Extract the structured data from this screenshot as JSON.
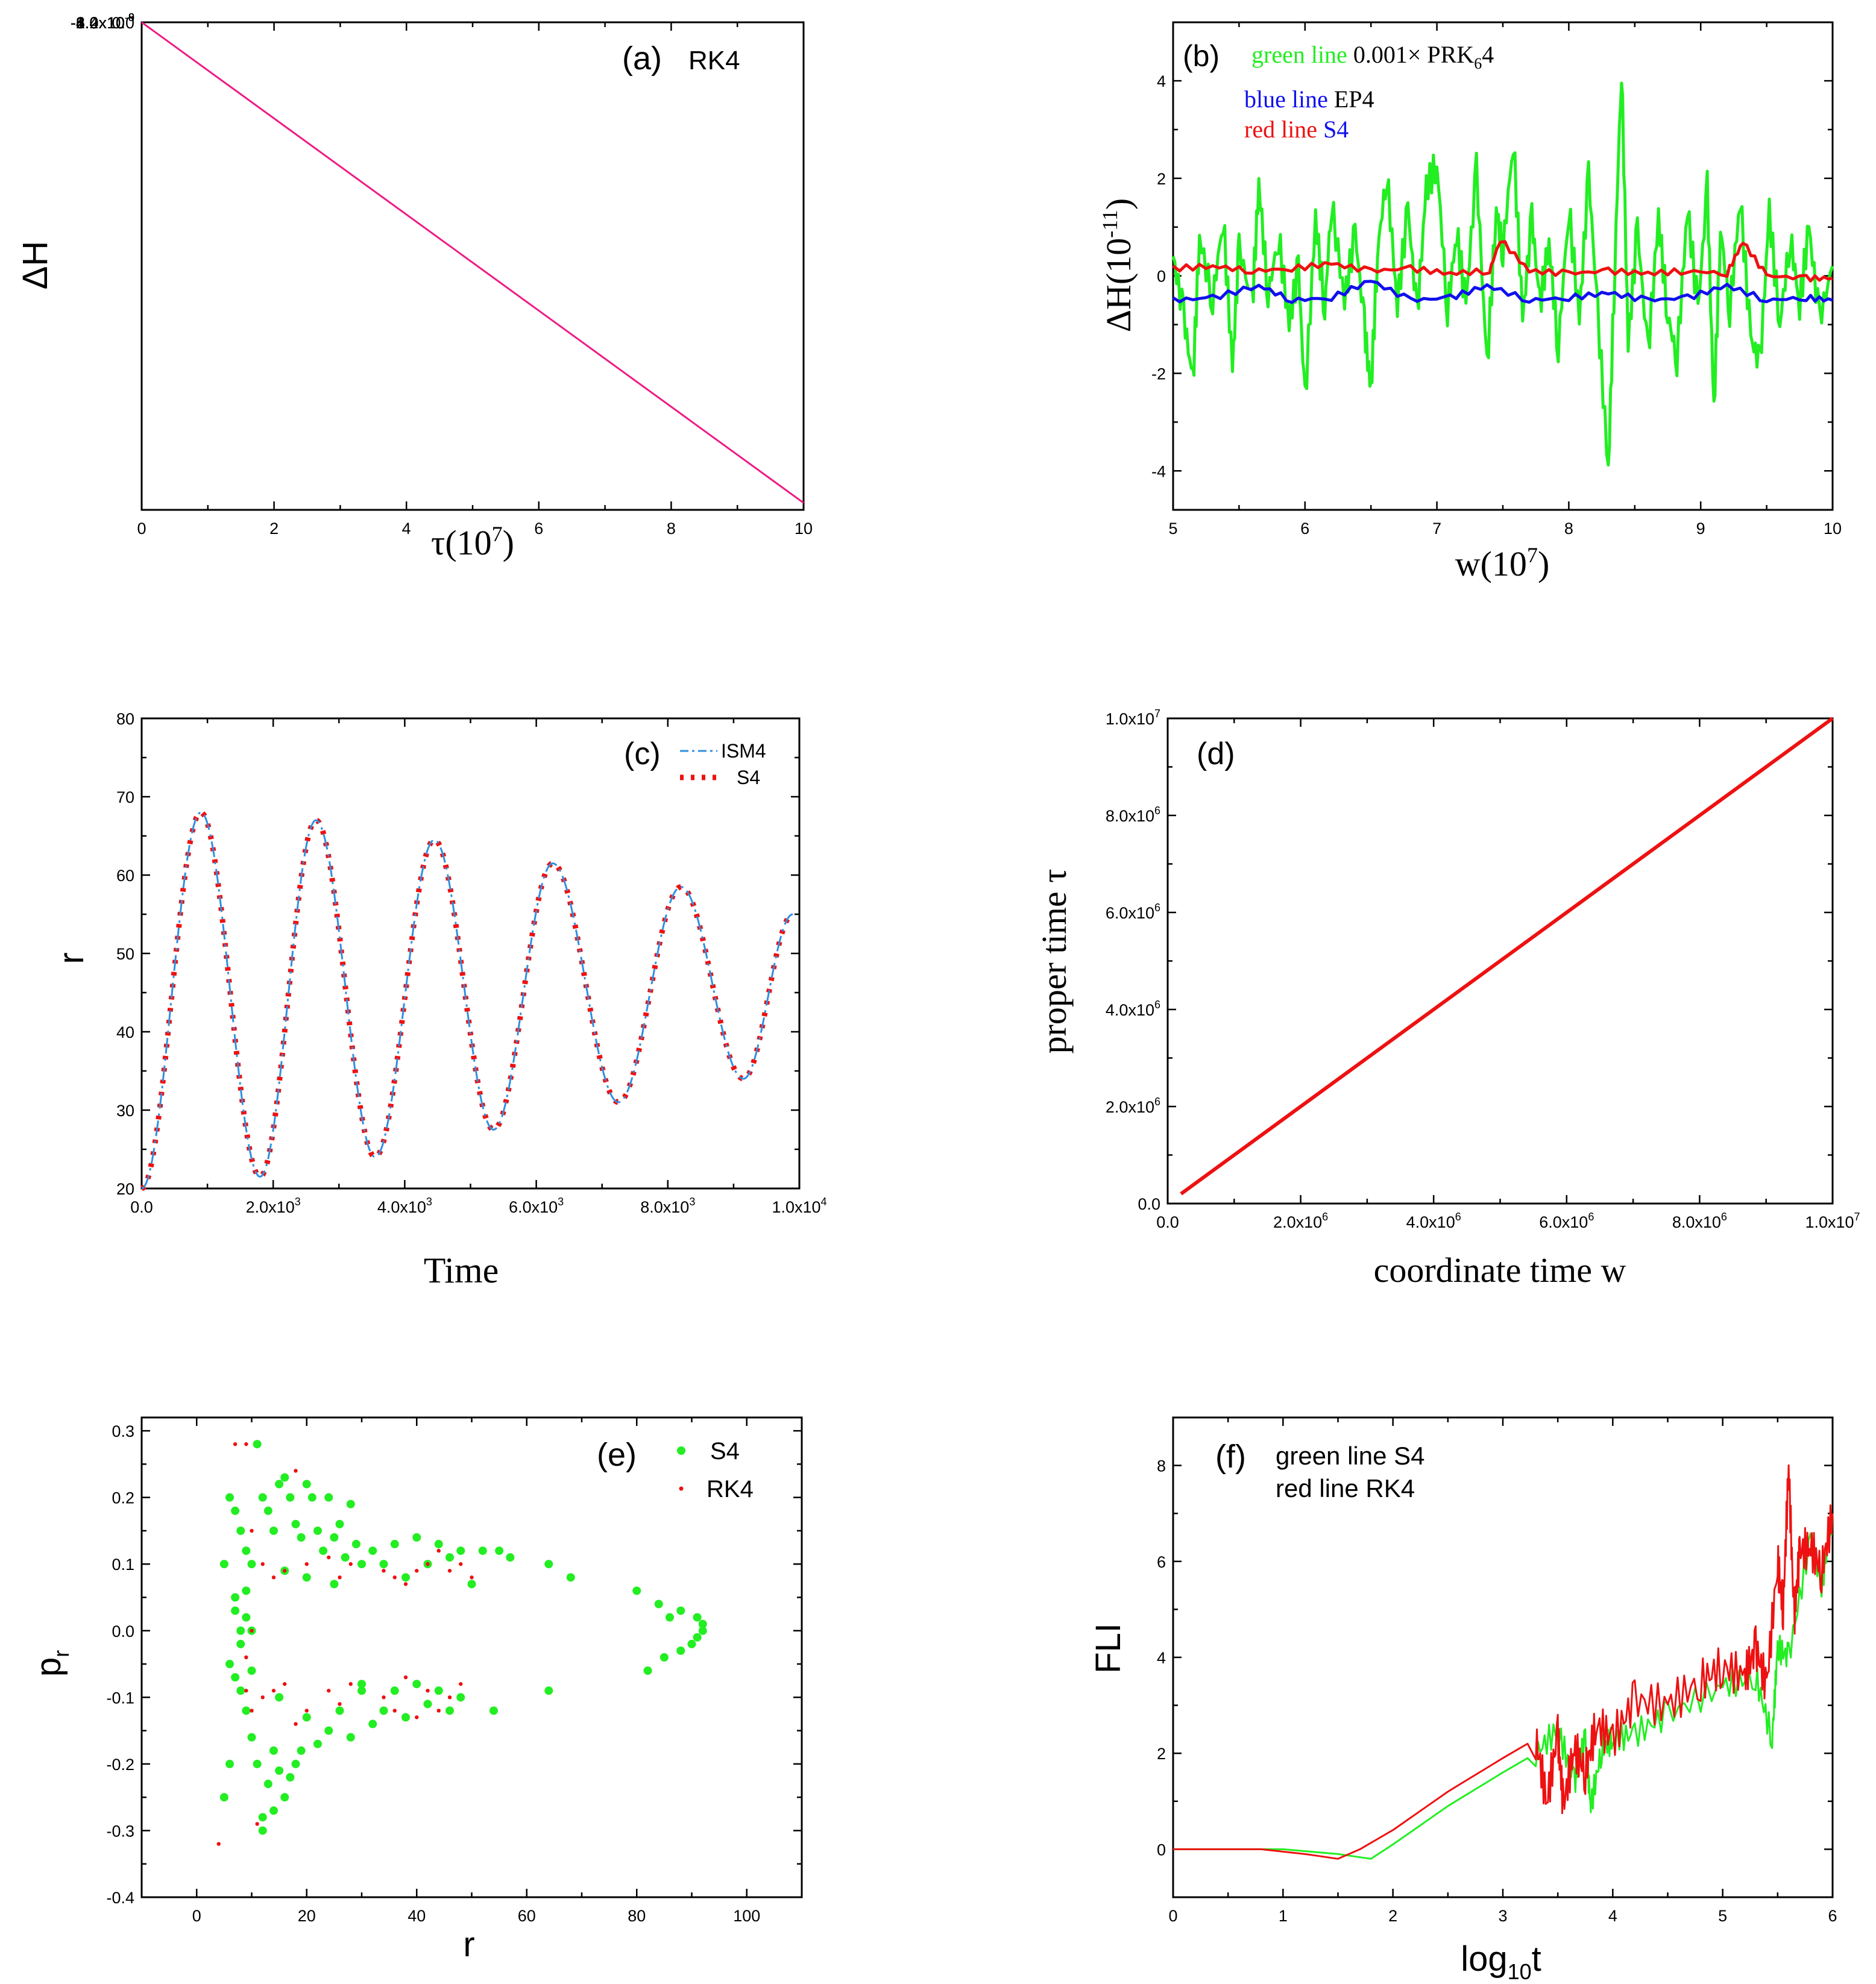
{
  "colors": {
    "pink": "#ee1b85",
    "green": "#22ee22",
    "blue": "#1010ee",
    "red": "#ee1111",
    "dash_blue": "#2f8fe0",
    "black": "#000000"
  },
  "chart_data": [
    {
      "id": "a",
      "type": "line",
      "panel_label": "(a)",
      "legend_label": "RK4",
      "xlabel": "τ(10",
      "xlabel_sup": "7",
      "xlabel_end": ")",
      "ylabel": "ΔH",
      "xlim": [
        0,
        10
      ],
      "ylim": [
        -1.4e-08,
        0.0
      ],
      "xtick_labels": [
        "0",
        "2",
        "4",
        "6",
        "8",
        "10"
      ],
      "ytick_labels": [
        "0.0",
        "-2.0x10",
        "-4.0x10",
        "-6.0x10",
        "-8.0x10",
        "-1.0x10",
        "-1.2x10",
        "-1.4x10"
      ],
      "ytick_exps": [
        "",
        "-9",
        "-9",
        "-9",
        "-9",
        "-8",
        "-8",
        "-8"
      ],
      "series": [
        {
          "name": "RK4",
          "x": [
            0,
            10
          ],
          "y": [
            0.0,
            -1.38e-08
          ]
        }
      ]
    },
    {
      "id": "b",
      "type": "line",
      "panel_label": "(b)",
      "xlabel": "w(10",
      "xlabel_sup": "7",
      "xlabel_end": ")",
      "ylabel": "ΔH(10",
      "ylabel_sup": "-11",
      "ylabel_end": ")",
      "xlim": [
        5,
        10
      ],
      "ylim": [
        -4.8,
        5.2
      ],
      "xtick_labels": [
        "5",
        "6",
        "7",
        "8",
        "9",
        "10"
      ],
      "ytick_labels": [
        "4",
        "2",
        "0",
        "-2",
        "-4"
      ],
      "legend": [
        {
          "prefix": "green line",
          "rest": "0.001× PRK",
          "sub": "6",
          "tail": "4"
        },
        {
          "prefix": "blue line",
          "rest": "EP4"
        },
        {
          "prefix": "red line",
          "rest": "S4"
        }
      ],
      "series": [
        {
          "name": "green line 0.001× PRK64",
          "x": [
            5.0,
            5.08,
            5.15,
            5.2,
            5.3,
            5.38,
            5.45,
            5.5,
            5.6,
            5.65,
            5.72,
            5.8,
            5.88,
            5.95,
            6.0,
            6.08,
            6.15,
            6.2,
            6.3,
            6.38,
            6.45,
            6.5,
            6.55,
            6.62,
            6.7,
            6.78,
            6.85,
            6.92,
            7.0,
            7.08,
            7.15,
            7.22,
            7.3,
            7.38,
            7.45,
            7.5,
            7.58,
            7.65,
            7.72,
            7.78,
            7.85,
            7.92,
            8.0,
            8.08,
            8.15,
            8.22,
            8.3,
            8.35,
            8.4,
            8.45,
            8.52,
            8.6,
            8.68,
            8.75,
            8.82,
            8.9,
            8.98,
            9.05,
            9.1,
            9.15,
            9.22,
            9.3,
            9.38,
            9.45,
            9.52,
            9.6,
            9.68,
            9.75,
            9.82,
            9.9,
            10.0
          ],
          "y": [
            0.4,
            -0.8,
            -2.2,
            0.8,
            -0.5,
            1.2,
            -1.9,
            0.6,
            -0.6,
            1.9,
            -0.4,
            0.8,
            -1.0,
            0.2,
            -2.6,
            1.2,
            -0.7,
            1.5,
            -0.5,
            0.9,
            -1.0,
            -2.4,
            0.5,
            2.1,
            -0.6,
            1.4,
            -0.8,
            1.8,
            2.3,
            -0.7,
            0.9,
            -0.6,
            2.2,
            -1.9,
            1.4,
            0.5,
            2.8,
            -0.9,
            1.2,
            -0.6,
            0.7,
            -1.5,
            1.4,
            -0.9,
            2.1,
            -0.8,
            -4.0,
            0.3,
            4.3,
            -1.4,
            1.0,
            -1.6,
            1.2,
            -0.8,
            -1.7,
            1.4,
            -0.7,
            1.8,
            -2.8,
            1.0,
            -0.7,
            1.6,
            -1.3,
            -1.8,
            1.3,
            -1.0,
            0.8,
            -0.6,
            1.0,
            -0.9,
            0.2
          ]
        },
        {
          "name": "blue line EP4",
          "x": [
            5.0,
            5.3,
            5.65,
            5.9,
            6.2,
            6.5,
            6.8,
            7.1,
            7.38,
            7.7,
            8.0,
            8.3,
            8.6,
            8.9,
            9.2,
            9.5,
            9.8,
            10.0
          ],
          "y": [
            -0.5,
            -0.45,
            -0.2,
            -0.5,
            -0.45,
            -0.1,
            -0.5,
            -0.45,
            -0.2,
            -0.5,
            -0.45,
            -0.35,
            -0.5,
            -0.45,
            -0.2,
            -0.5,
            -0.45,
            -0.5
          ]
        },
        {
          "name": "red line S4",
          "x": [
            5.0,
            5.3,
            5.6,
            5.9,
            6.2,
            6.5,
            6.8,
            7.1,
            7.4,
            7.48,
            7.7,
            8.0,
            8.3,
            8.6,
            8.9,
            9.2,
            9.32,
            9.5,
            9.8,
            10.0
          ],
          "y": [
            0.15,
            0.2,
            0.1,
            0.15,
            0.25,
            0.1,
            0.15,
            0.05,
            0.1,
            0.75,
            0.1,
            0.05,
            0.1,
            0.05,
            0.1,
            0.05,
            0.7,
            0.0,
            -0.05,
            -0.05
          ]
        }
      ]
    },
    {
      "id": "c",
      "type": "line",
      "panel_label": "(c)",
      "xlabel": "Time",
      "ylabel": "r",
      "xlim": [
        0,
        10000
      ],
      "ylim": [
        20,
        80
      ],
      "xtick_labels": [
        "0.0",
        "2.0x10",
        "4.0x10",
        "6.0x10",
        "8.0x10",
        "1.0x10"
      ],
      "xtick_exps": [
        "",
        "3",
        "3",
        "3",
        "3",
        "4"
      ],
      "ytick_labels": [
        "20",
        "30",
        "40",
        "50",
        "60",
        "70",
        "80"
      ],
      "legend": [
        "ISM4",
        "S4"
      ],
      "series": [
        {
          "name": "ISM4",
          "x": [
            0,
            900,
            1800,
            2650,
            3550,
            4450,
            5350,
            6250,
            7250,
            8200,
            9150,
            9900
          ],
          "y": [
            20,
            68,
            21.5,
            67,
            24,
            64.5,
            27.5,
            61.5,
            31,
            58.5,
            34,
            55
          ]
        },
        {
          "name": "S4",
          "x": [
            0,
            900,
            1800,
            2650,
            3550,
            4450,
            5350,
            6250,
            7250,
            8200,
            9150,
            9900
          ],
          "y": [
            20,
            68,
            21.5,
            67,
            24,
            64.5,
            27.5,
            61.5,
            31,
            58.5,
            34,
            55
          ]
        }
      ]
    },
    {
      "id": "d",
      "type": "line",
      "panel_label": "(d)",
      "xlabel": "coordinate time w",
      "ylabel": "proper time τ",
      "xlim": [
        0,
        10000000
      ],
      "ylim": [
        0,
        10000000
      ],
      "xtick_labels": [
        "0.0",
        "2.0x10",
        "4.0x10",
        "6.0x10",
        "8.0x10",
        "1.0x10"
      ],
      "xtick_exps": [
        "",
        "6",
        "6",
        "6",
        "6",
        "7"
      ],
      "ytick_labels": [
        "0.0",
        "2.0x10",
        "4.0x10",
        "6.0x10",
        "8.0x10",
        "1.0x10"
      ],
      "ytick_exps": [
        "",
        "6",
        "6",
        "6",
        "6",
        "7"
      ],
      "series": [
        {
          "name": "τ(w)",
          "x": [
            200000,
            10000000
          ],
          "y": [
            200000,
            10000000
          ]
        }
      ]
    },
    {
      "id": "e",
      "type": "scatter",
      "panel_label": "(e)",
      "xlabel": "r",
      "ylabel": "p",
      "ylabel_sub": "r",
      "xlim": [
        -10,
        110
      ],
      "ylim": [
        -0.4,
        0.32
      ],
      "xtick_labels": [
        "0",
        "20",
        "40",
        "60",
        "80",
        "100"
      ],
      "ytick_labels": [
        "0.3",
        "0.2",
        "0.1",
        "0.0",
        "-0.1",
        "-0.2",
        "-0.3",
        "-0.4"
      ],
      "legend": [
        "S4",
        "RK4"
      ],
      "series": [
        {
          "name": "S4",
          "x": [
            5,
            6,
            7,
            8,
            9,
            10,
            11,
            12,
            13,
            14,
            15,
            16,
            17,
            18,
            19,
            20,
            21,
            22,
            23,
            24,
            25,
            26,
            27,
            28,
            29,
            30,
            32,
            34,
            36,
            38,
            40,
            42,
            44,
            46,
            48,
            50,
            52,
            55,
            57,
            64,
            68,
            80,
            84,
            86,
            88,
            91,
            92,
            92,
            91,
            90,
            88,
            85,
            82,
            64,
            54,
            48,
            46,
            44,
            42,
            40,
            38,
            36,
            34,
            32,
            30,
            28,
            26,
            24,
            22,
            20,
            19,
            18,
            17,
            16,
            15,
            14,
            13,
            12,
            11,
            10,
            9,
            8,
            7,
            6,
            5,
            7,
            6,
            8,
            9,
            10,
            9,
            8,
            10,
            7,
            12,
            14,
            15,
            16,
            20,
            25,
            30
          ],
          "y": [
            0.1,
            0.2,
            0.18,
            0.15,
            0.12,
            0.1,
            0.28,
            0.2,
            0.18,
            0.15,
            0.22,
            0.23,
            0.2,
            0.16,
            0.14,
            0.22,
            0.2,
            0.15,
            0.12,
            0.2,
            0.14,
            0.16,
            0.11,
            0.19,
            0.13,
            0.1,
            0.12,
            0.1,
            0.13,
            0.08,
            0.14,
            0.1,
            0.13,
            0.11,
            0.12,
            0.07,
            0.12,
            0.12,
            0.11,
            0.1,
            0.08,
            0.06,
            0.04,
            0.02,
            0.03,
            0.02,
            0.01,
            0.0,
            -0.01,
            -0.02,
            -0.03,
            -0.04,
            -0.06,
            -0.09,
            -0.12,
            -0.1,
            -0.12,
            -0.09,
            -0.11,
            -0.08,
            -0.13,
            -0.09,
            -0.12,
            -0.14,
            -0.09,
            -0.16,
            -0.12,
            -0.15,
            -0.17,
            -0.13,
            -0.18,
            -0.2,
            -0.22,
            -0.25,
            -0.21,
            -0.27,
            -0.23,
            -0.28,
            -0.2,
            -0.16,
            -0.12,
            -0.09,
            -0.07,
            -0.2,
            -0.25,
            0.05,
            -0.05,
            0.0,
            0.06,
            -0.06,
            0.02,
            -0.02,
            0.0,
            0.03,
            -0.3,
            -0.18,
            -0.1,
            0.09,
            0.08,
            0.07,
            -0.08
          ]
        },
        {
          "name": "RK4",
          "x": [
            4,
            7,
            9,
            10,
            12,
            14,
            16,
            18,
            20,
            24,
            26,
            28,
            34,
            36,
            38,
            40,
            42,
            44,
            46,
            48,
            50,
            9,
            10,
            12,
            14,
            16,
            18,
            20,
            24,
            26,
            28,
            34,
            36,
            38,
            40,
            42,
            44,
            46,
            48,
            10,
            11,
            9
          ],
          "y": [
            -0.32,
            0.28,
            0.28,
            0.15,
            0.1,
            0.08,
            0.09,
            0.24,
            0.1,
            0.11,
            0.08,
            0.1,
            0.09,
            0.08,
            0.07,
            0.09,
            0.1,
            0.12,
            0.09,
            0.1,
            0.08,
            -0.09,
            -0.12,
            -0.1,
            -0.09,
            -0.08,
            -0.14,
            -0.12,
            -0.09,
            -0.11,
            -0.08,
            -0.1,
            -0.12,
            -0.07,
            -0.13,
            -0.09,
            -0.12,
            -0.1,
            -0.08,
            0.0,
            -0.29,
            -0.04
          ]
        }
      ]
    },
    {
      "id": "f",
      "type": "line",
      "panel_label": "(f)",
      "xlabel": "log",
      "xlabel_sub": "10",
      "xlabel_end": "t",
      "ylabel": "FLI",
      "xlim": [
        0,
        6
      ],
      "ylim": [
        -1,
        9
      ],
      "xtick_labels": [
        "0",
        "1",
        "2",
        "3",
        "4",
        "5",
        "6"
      ],
      "ytick_labels": [
        "0",
        "2",
        "4",
        "6",
        "8"
      ],
      "legend": [
        "green line S4",
        "red line RK4"
      ],
      "series": [
        {
          "name": "green line S4",
          "x": [
            0,
            1.0,
            1.5,
            1.8,
            2.0,
            2.5,
            3.0,
            3.3,
            3.5,
            3.65,
            3.75,
            3.8,
            3.9,
            4.0,
            4.2,
            4.5,
            5.0,
            5.3,
            5.45,
            5.5,
            5.6,
            5.8,
            5.9,
            6.0
          ],
          "y": [
            0,
            0,
            -0.1,
            -0.2,
            0.1,
            0.9,
            1.6,
            2.0,
            2.5,
            1.4,
            2.3,
            0.9,
            2.1,
            2.3,
            2.4,
            2.8,
            3.4,
            3.6,
            2.3,
            4.2,
            4.0,
            6.5,
            5.5,
            7.0
          ]
        },
        {
          "name": "red line RK4",
          "x": [
            0,
            0.8,
            1.2,
            1.5,
            1.7,
            2.0,
            2.5,
            3.0,
            3.3,
            3.4,
            3.5,
            3.55,
            3.65,
            3.75,
            3.85,
            4.0,
            4.2,
            4.5,
            4.8,
            5.0,
            5.2,
            5.3,
            5.4,
            5.5,
            5.55,
            5.6,
            5.65,
            5.7,
            5.8,
            5.9,
            6.0
          ],
          "y": [
            0,
            0,
            -0.1,
            -0.2,
            0,
            0.4,
            1.2,
            1.9,
            2.3,
            1.0,
            2.4,
            0.9,
            2.1,
            1.6,
            2.6,
            2.3,
            3.1,
            3.0,
            3.5,
            3.8,
            3.6,
            4.2,
            3.4,
            6.0,
            5.0,
            8.0,
            4.8,
            6.2,
            6.3,
            5.8,
            7.0
          ]
        }
      ]
    }
  ]
}
